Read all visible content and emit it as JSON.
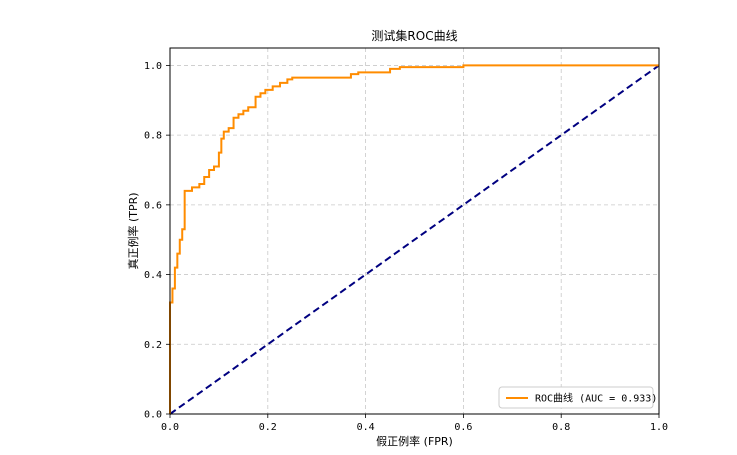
{
  "chart_data": {
    "type": "line",
    "title": "测试集ROC曲线",
    "xlabel": "假正例率 (FPR)",
    "ylabel": "真正例率 (TPR)",
    "xlim": [
      0.0,
      1.0
    ],
    "ylim": [
      0.0,
      1.05
    ],
    "xticks": [
      "0.0",
      "0.2",
      "0.4",
      "0.6",
      "0.8",
      "1.0"
    ],
    "yticks": [
      "0.0",
      "0.2",
      "0.4",
      "0.6",
      "0.8",
      "1.0"
    ],
    "grid": true,
    "legend_position": "lower-right",
    "series": [
      {
        "name": "ROC曲线 (AUC = 0.933)",
        "color": "#ff8c00",
        "style": "solid",
        "x": [
          0.0,
          0.0,
          0.005,
          0.005,
          0.01,
          0.01,
          0.015,
          0.015,
          0.02,
          0.02,
          0.025,
          0.025,
          0.03,
          0.03,
          0.035,
          0.035,
          0.045,
          0.045,
          0.06,
          0.06,
          0.07,
          0.07,
          0.08,
          0.08,
          0.09,
          0.09,
          0.1,
          0.1,
          0.105,
          0.105,
          0.11,
          0.11,
          0.12,
          0.12,
          0.13,
          0.13,
          0.14,
          0.14,
          0.15,
          0.15,
          0.16,
          0.16,
          0.175,
          0.175,
          0.185,
          0.185,
          0.195,
          0.195,
          0.21,
          0.21,
          0.225,
          0.225,
          0.24,
          0.24,
          0.25,
          0.25,
          0.37,
          0.37,
          0.385,
          0.385,
          0.415,
          0.415,
          0.45,
          0.45,
          0.47,
          0.47,
          0.48,
          0.48,
          0.6,
          0.6,
          1.0
        ],
        "y": [
          0.0,
          0.32,
          0.32,
          0.36,
          0.36,
          0.42,
          0.42,
          0.46,
          0.46,
          0.5,
          0.5,
          0.53,
          0.53,
          0.64,
          0.64,
          0.64,
          0.64,
          0.65,
          0.65,
          0.66,
          0.66,
          0.68,
          0.68,
          0.7,
          0.7,
          0.71,
          0.71,
          0.75,
          0.75,
          0.79,
          0.79,
          0.81,
          0.81,
          0.82,
          0.82,
          0.85,
          0.85,
          0.86,
          0.86,
          0.87,
          0.87,
          0.88,
          0.88,
          0.91,
          0.91,
          0.92,
          0.92,
          0.93,
          0.93,
          0.94,
          0.94,
          0.95,
          0.95,
          0.96,
          0.96,
          0.965,
          0.965,
          0.975,
          0.975,
          0.98,
          0.98,
          0.98,
          0.98,
          0.99,
          0.99,
          0.995,
          0.995,
          0.995,
          0.995,
          1.0,
          1.0
        ]
      },
      {
        "color": "#000080",
        "style": "dashed",
        "x": [
          0.0,
          1.0
        ],
        "y": [
          0.0,
          1.0
        ]
      }
    ]
  }
}
